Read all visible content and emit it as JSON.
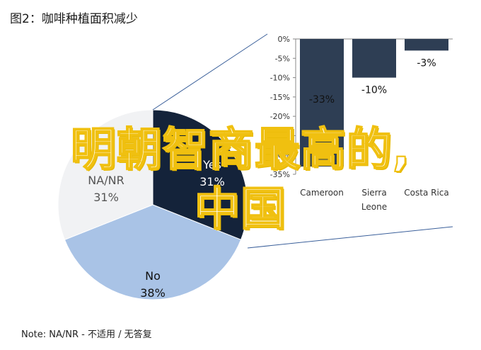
{
  "title": "图2：咖啡种植面积减少",
  "note": "Note: NA/NR - 不适用 / 无答复",
  "overlay_text_line1": "明朝智商最高的,",
  "overlay_text_line2": "中国",
  "chart_data": [
    {
      "type": "pie",
      "slices": [
        {
          "label": "Yes",
          "pct_label": "31%",
          "value": 31,
          "color": "#14233a"
        },
        {
          "label": "No",
          "pct_label": "38%",
          "value": 38,
          "color": "#a9c3e6"
        },
        {
          "label": "NA/NR",
          "pct_label": "31%",
          "value": 31,
          "color": "#f1f2f4"
        }
      ]
    },
    {
      "type": "bar",
      "categories": [
        "Cameroon",
        "Sierra Leone",
        "Costa Rica"
      ],
      "category_lines": [
        [
          "Cameroon"
        ],
        [
          "Sierra",
          "Leone"
        ],
        [
          "Costa Rica"
        ]
      ],
      "values": [
        -33,
        -10,
        -3
      ],
      "data_labels": [
        "-33%",
        "-10%",
        "-3%"
      ],
      "ylim": [
        -35,
        0
      ],
      "yticks": [
        "0%",
        "-5%",
        "-10%",
        "-15%",
        "-20%",
        "-25%",
        "-30%",
        "-35%"
      ],
      "colors": [
        "#2e3e54",
        "#2e3e54",
        "#2e3e54"
      ]
    }
  ]
}
